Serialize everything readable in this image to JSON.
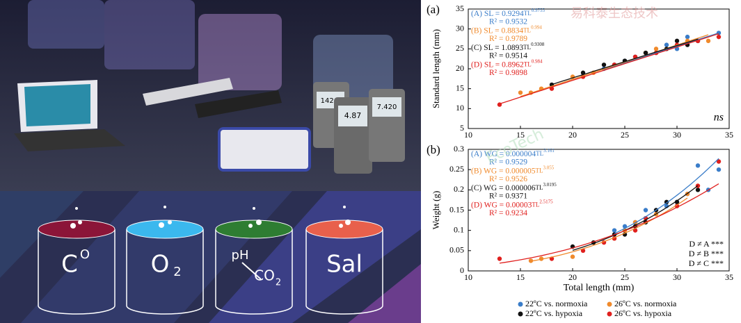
{
  "illustration": {
    "devices": [
      "142.1",
      "4.87",
      "7.420"
    ],
    "cylinders": [
      {
        "text": "C",
        "sup": "O"
      },
      {
        "text": "O",
        "sub": "2"
      },
      {
        "top": "pH",
        "text": "CO",
        "sub": "2"
      },
      {
        "text": "Sal"
      }
    ]
  },
  "watermark": {
    "logo": "EcoTech",
    "company": "易科泰生态技术"
  },
  "chart_data": [
    {
      "type": "scatter",
      "panel_label": "(a)",
      "ylabel": "Standard length (mm)",
      "xlim": [
        10,
        35
      ],
      "xticks": [
        10,
        15,
        20,
        25,
        30,
        35
      ],
      "ylim": [
        5,
        35
      ],
      "yticks": [
        5,
        10,
        15,
        20,
        25,
        30,
        35
      ],
      "series": [
        {
          "color": "#3a7dc9",
          "x": [
            23,
            25,
            26,
            28,
            29,
            30,
            31,
            32,
            34
          ],
          "values": [
            20,
            22,
            23,
            24,
            26,
            25,
            28,
            27,
            29
          ]
        },
        {
          "color": "#f08a2c",
          "x": [
            15,
            16,
            17,
            20,
            22,
            24,
            27,
            28,
            31,
            33
          ],
          "values": [
            14,
            14,
            15,
            18,
            19,
            21,
            24,
            25,
            27,
            27
          ]
        },
        {
          "color": "#111111",
          "x": [
            18,
            21,
            23,
            24,
            25,
            27,
            29,
            30,
            31,
            32
          ],
          "values": [
            16,
            19,
            21,
            21,
            22,
            24,
            25,
            27,
            26,
            27
          ]
        },
        {
          "color": "#e0201e",
          "x": [
            13,
            18,
            21,
            24,
            26,
            28,
            30,
            32,
            34
          ],
          "values": [
            11,
            15,
            18,
            21,
            23,
            24,
            26,
            27,
            28
          ]
        }
      ],
      "fits": [
        {
          "prefix": "(A) SL = ",
          "coef": 0.9294,
          "var": "TL",
          "exp": 0.9755,
          "r2": "R² = 0.9532"
        },
        {
          "prefix": "(B) SL = ",
          "coef": 0.8834,
          "var": "TL",
          "exp": 0.994,
          "r2": "R² = 0.9789"
        },
        {
          "prefix": "(C) SL = ",
          "coef": 1.0893,
          "var": "TL",
          "exp": 0.9308,
          "r2": "R² = 0.9514"
        },
        {
          "prefix": "(D) SL = ",
          "coef": 0.8962,
          "var": "TL",
          "exp": 0.984,
          "r2": "R² = 0.9898"
        }
      ],
      "annotations": [
        "ns"
      ]
    },
    {
      "type": "scatter",
      "panel_label": "(b)",
      "ylabel": "Weight (g)",
      "xlabel": "Total length (mm)",
      "xlim": [
        10,
        35
      ],
      "xticks": [
        10,
        15,
        20,
        25,
        30,
        35
      ],
      "ylim": [
        0,
        0.3
      ],
      "yticks": [
        0,
        0.05,
        0.1,
        0.15,
        0.2,
        0.25,
        0.3
      ],
      "series": [
        {
          "name": "22ºC vs. normoxia",
          "color": "#3a7dc9",
          "x": [
            24,
            25,
            26,
            27,
            29,
            30,
            31,
            32,
            33,
            34
          ],
          "values": [
            0.1,
            0.11,
            0.12,
            0.15,
            0.16,
            0.17,
            0.19,
            0.26,
            0.2,
            0.25
          ]
        },
        {
          "name": "26ºC vs. normoxia",
          "color": "#f08a2c",
          "x": [
            16,
            17,
            20,
            22,
            24,
            25,
            26,
            28,
            31
          ],
          "values": [
            0.025,
            0.03,
            0.035,
            0.07,
            0.08,
            0.1,
            0.12,
            0.14,
            0.19
          ]
        },
        {
          "name": "22ºC vs. hypoxia",
          "color": "#111111",
          "x": [
            20,
            22,
            24,
            25,
            26,
            27,
            28,
            29,
            30,
            32
          ],
          "values": [
            0.06,
            0.07,
            0.09,
            0.09,
            0.11,
            0.12,
            0.15,
            0.17,
            0.17,
            0.2
          ]
        },
        {
          "name": "26ºC vs. hypoxia",
          "color": "#e0201e",
          "x": [
            13,
            18,
            21,
            23,
            24,
            26,
            27,
            30,
            32,
            34
          ],
          "values": [
            0.03,
            0.03,
            0.05,
            0.07,
            0.08,
            0.1,
            0.13,
            0.16,
            0.21,
            0.27
          ]
        }
      ],
      "fits": [
        {
          "prefix": "(A) WG = ",
          "coef": 4e-06,
          "var": "TL",
          "exp": 3.161,
          "r2": "R² = 0.9529"
        },
        {
          "prefix": "(B) WG = ",
          "coef": 5e-06,
          "var": "TL",
          "exp": 3.055,
          "r2": "R² = 0.9526"
        },
        {
          "prefix": "(C) WG = ",
          "coef": 6e-06,
          "var": "TL",
          "exp": 3.0195,
          "r2": "R² = 0.9371"
        },
        {
          "prefix": "(D) WG = ",
          "coef": 3e-05,
          "var": "TL",
          "exp": 2.5175,
          "r2": "R² = 0.9234"
        }
      ],
      "annotations": [
        "D ≠ A ***",
        "D ≠ B ***",
        "D ≠ C ***"
      ]
    }
  ]
}
